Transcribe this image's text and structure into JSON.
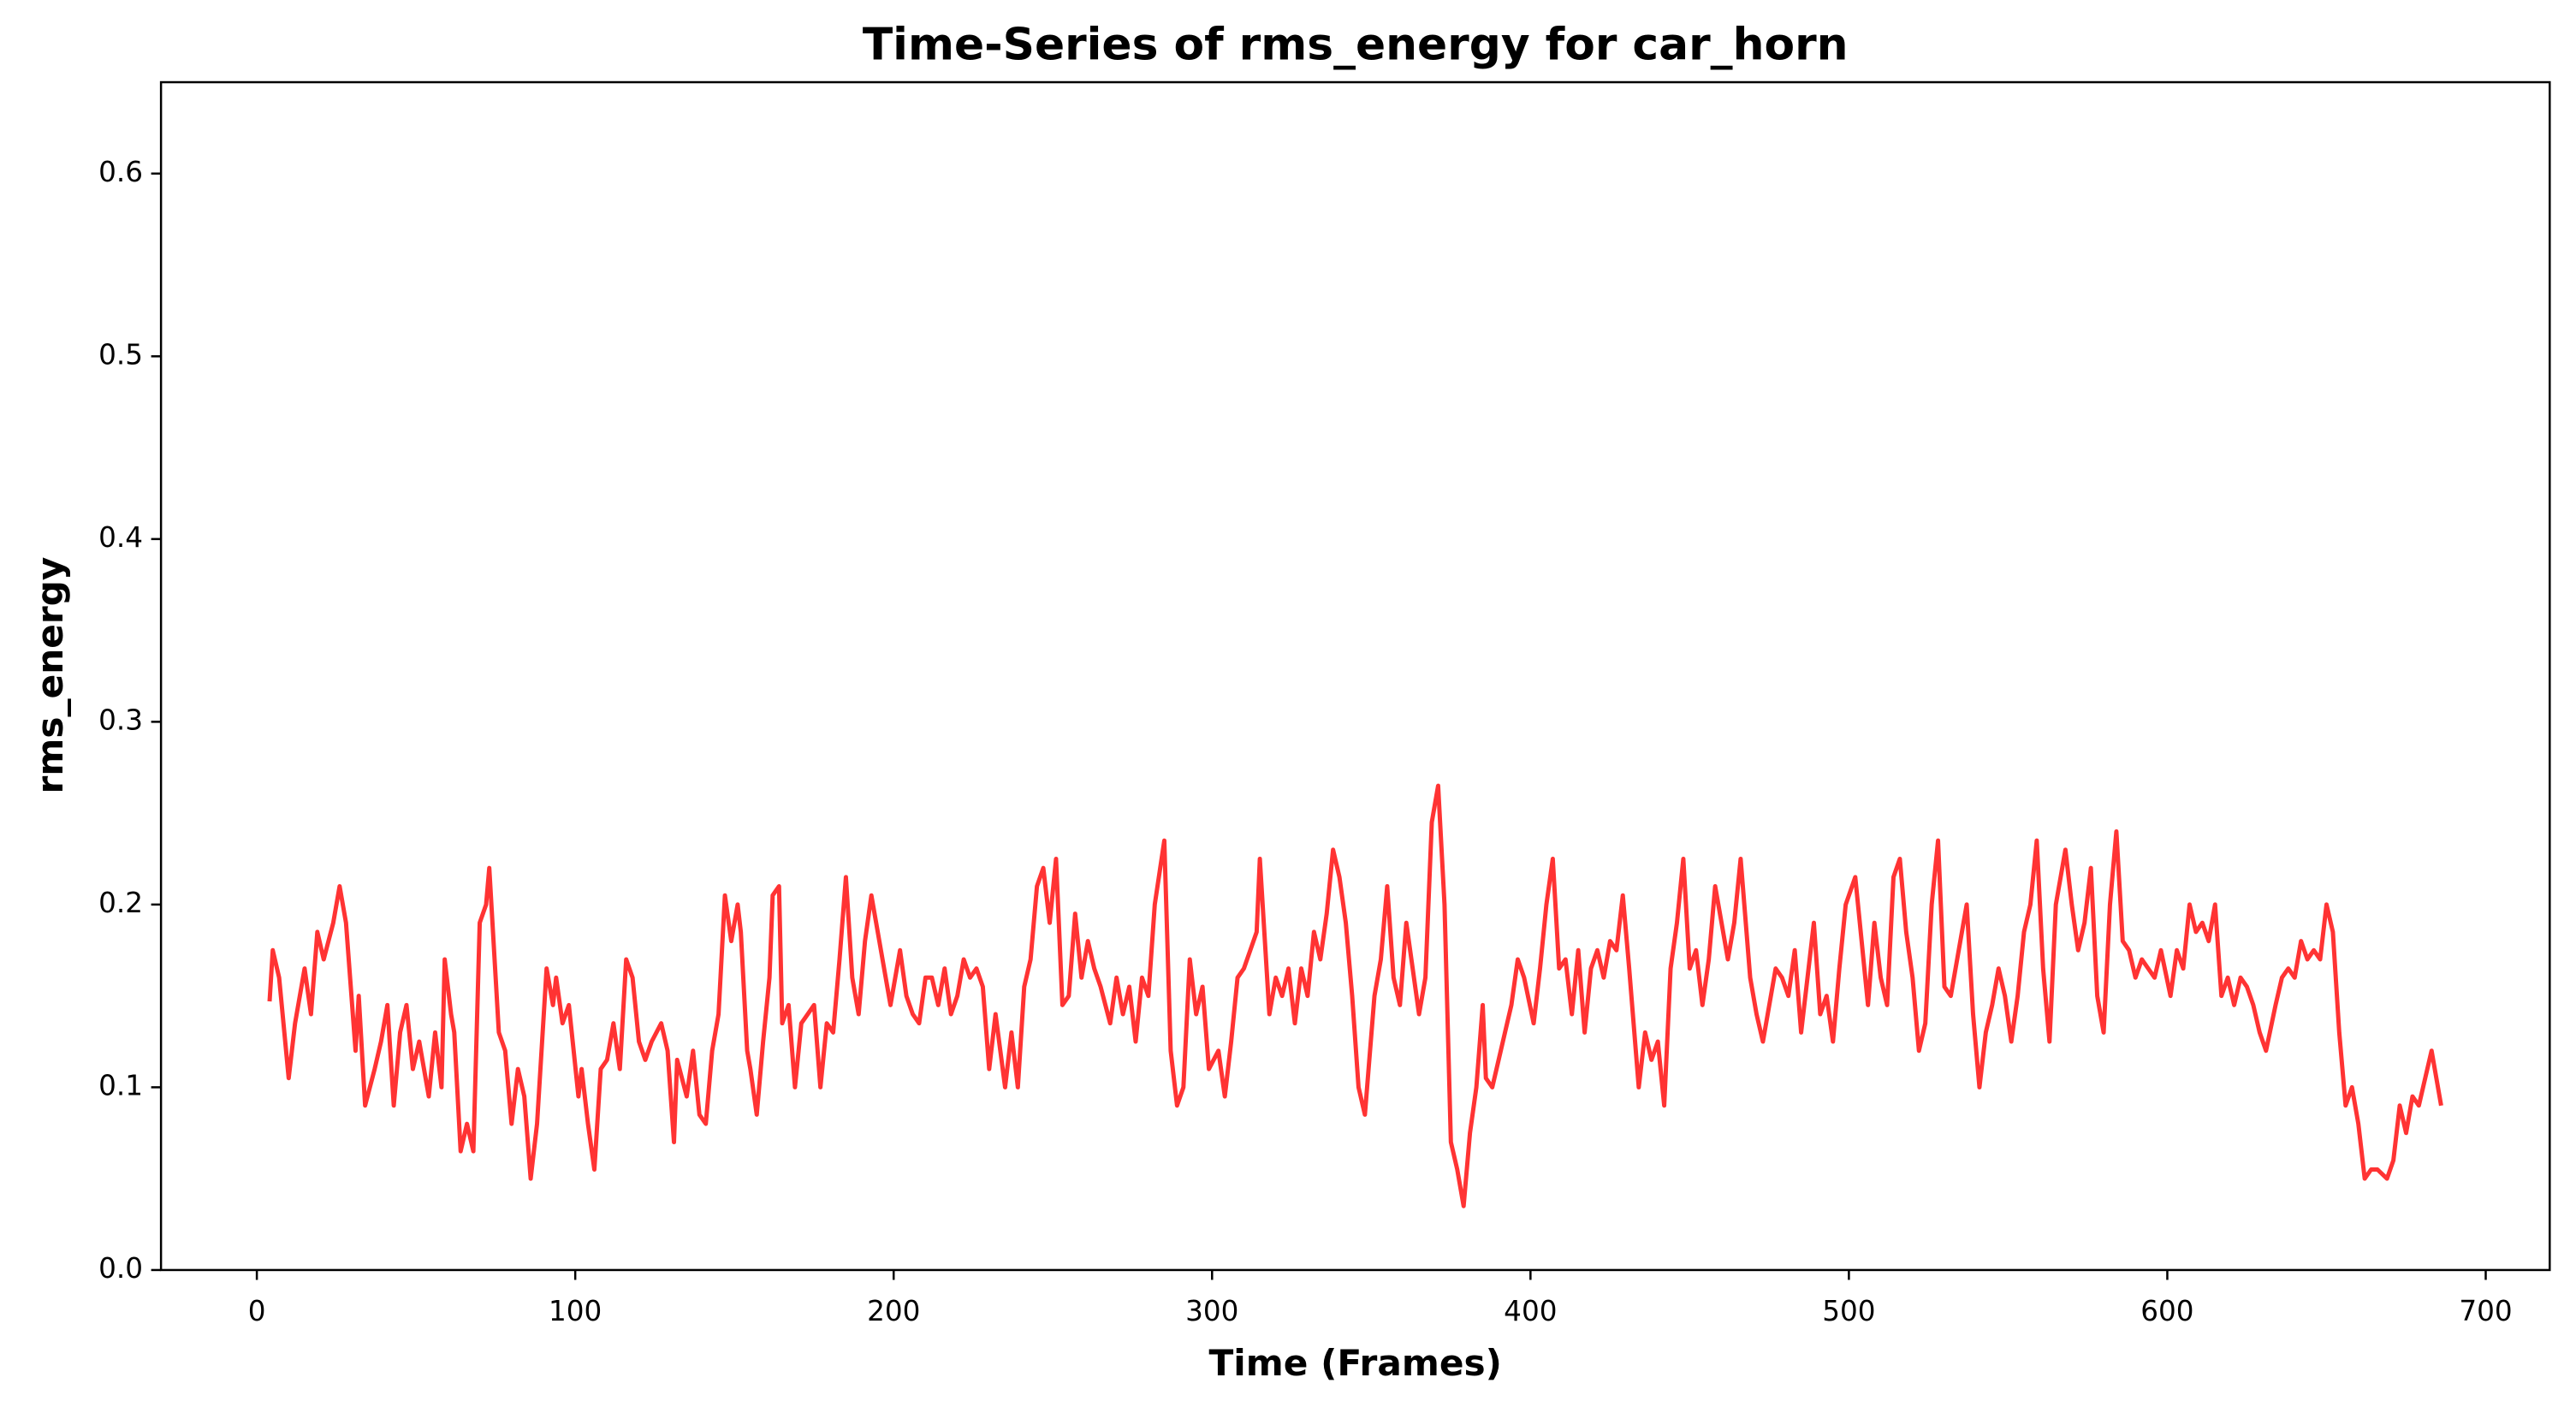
{
  "chart_data": {
    "type": "line",
    "title": "Time-Series of rms_energy for car_horn",
    "x_label": "Time (Frames)",
    "y_label": "rms_energy",
    "xlim": [
      -30.1,
      720.1
    ],
    "ylim": [
      0,
      0.65
    ],
    "xticks": [
      0,
      100,
      200,
      300,
      400,
      500,
      600,
      700
    ],
    "yticks": [
      {
        "value": 0,
        "label": "0.0"
      },
      0.1,
      0.2,
      0.3,
      0.4,
      0.5,
      0.6
    ],
    "grid": false,
    "x": [
      4,
      5,
      7,
      10,
      12,
      15,
      17,
      19,
      21,
      24,
      26,
      28,
      31,
      32,
      34,
      37,
      39,
      41,
      43,
      45,
      47,
      49,
      51,
      54,
      56,
      58,
      59,
      61,
      62,
      64,
      66,
      68,
      70,
      72,
      73,
      75,
      76,
      78,
      80,
      82,
      84,
      86,
      88,
      91,
      93,
      94,
      96,
      98,
      101,
      102,
      104,
      106,
      108,
      110,
      112,
      114,
      116,
      118,
      120,
      122,
      124,
      127,
      129,
      131,
      132,
      135,
      137,
      139,
      141,
      143,
      145,
      147,
      149,
      151,
      152,
      154,
      155,
      157,
      159,
      161,
      162,
      164,
      165,
      167,
      169,
      171,
      173,
      175,
      177,
      179,
      181,
      183,
      185,
      187,
      189,
      191,
      193,
      195,
      197,
      199,
      202,
      204,
      206,
      208,
      210,
      212,
      214,
      216,
      218,
      220,
      222,
      224,
      226,
      228,
      230,
      232,
      235,
      237,
      239,
      241,
      243,
      245,
      247,
      249,
      251,
      253,
      255,
      257,
      259,
      261,
      263,
      265,
      268,
      270,
      272,
      274,
      276,
      278,
      280,
      282,
      285,
      287,
      289,
      291,
      293,
      295,
      297,
      299,
      302,
      304,
      306,
      308,
      310,
      312,
      314,
      315,
      318,
      320,
      322,
      324,
      326,
      328,
      330,
      332,
      334,
      336,
      338,
      340,
      342,
      344,
      346,
      348,
      351,
      353,
      355,
      357,
      359,
      361,
      363,
      365,
      367,
      369,
      371,
      373,
      375,
      377,
      379,
      381,
      383,
      385,
      386,
      388,
      390,
      392,
      394,
      396,
      398,
      401,
      403,
      405,
      407,
      409,
      411,
      413,
      415,
      417,
      419,
      421,
      423,
      425,
      427,
      429,
      431,
      434,
      436,
      438,
      440,
      442,
      444,
      446,
      448,
      450,
      452,
      454,
      456,
      458,
      460,
      462,
      464,
      466,
      469,
      471,
      473,
      475,
      477,
      479,
      481,
      483,
      485,
      487,
      489,
      491,
      493,
      495,
      497,
      499,
      502,
      504,
      506,
      508,
      510,
      512,
      514,
      516,
      518,
      520,
      522,
      524,
      526,
      528,
      530,
      532,
      535,
      537,
      539,
      541,
      543,
      545,
      547,
      549,
      551,
      553,
      555,
      557,
      559,
      561,
      563,
      565,
      568,
      570,
      572,
      574,
      576,
      578,
      580,
      582,
      584,
      586,
      588,
      590,
      592,
      594,
      596,
      598,
      601,
      603,
      605,
      607,
      609,
      611,
      613,
      615,
      617,
      619,
      621,
      623,
      625,
      627,
      629,
      631,
      634,
      636,
      638,
      640,
      642,
      644,
      646,
      648,
      650,
      652,
      654,
      656,
      658,
      660,
      662,
      664,
      666,
      669,
      671,
      673,
      675,
      677,
      679,
      683,
      686
    ],
    "series": [
      {
        "color": "#ff3333",
        "values": [
          0.147,
          0.175,
          0.16,
          0.105,
          0.135,
          0.165,
          0.14,
          0.185,
          0.17,
          0.19,
          0.21,
          0.19,
          0.12,
          0.15,
          0.09,
          0.11,
          0.125,
          0.145,
          0.09,
          0.13,
          0.145,
          0.11,
          0.125,
          0.095,
          0.13,
          0.1,
          0.17,
          0.14,
          0.13,
          0.065,
          0.08,
          0.065,
          0.19,
          0.2,
          0.22,
          0.16,
          0.13,
          0.12,
          0.08,
          0.11,
          0.095,
          0.05,
          0.08,
          0.165,
          0.145,
          0.16,
          0.135,
          0.145,
          0.095,
          0.11,
          0.08,
          0.055,
          0.11,
          0.115,
          0.135,
          0.11,
          0.17,
          0.16,
          0.125,
          0.115,
          0.125,
          0.135,
          0.12,
          0.07,
          0.115,
          0.095,
          0.12,
          0.085,
          0.08,
          0.12,
          0.14,
          0.205,
          0.18,
          0.2,
          0.185,
          0.12,
          0.11,
          0.085,
          0.125,
          0.16,
          0.205,
          0.21,
          0.135,
          0.145,
          0.1,
          0.135,
          0.14,
          0.145,
          0.1,
          0.135,
          0.13,
          0.17,
          0.215,
          0.16,
          0.14,
          0.18,
          0.205,
          0.185,
          0.165,
          0.145,
          0.175,
          0.15,
          0.14,
          0.135,
          0.16,
          0.16,
          0.145,
          0.165,
          0.14,
          0.15,
          0.17,
          0.16,
          0.165,
          0.155,
          0.11,
          0.14,
          0.1,
          0.13,
          0.1,
          0.155,
          0.17,
          0.21,
          0.22,
          0.19,
          0.225,
          0.145,
          0.15,
          0.195,
          0.16,
          0.18,
          0.165,
          0.155,
          0.135,
          0.16,
          0.14,
          0.155,
          0.125,
          0.16,
          0.15,
          0.2,
          0.235,
          0.12,
          0.09,
          0.1,
          0.17,
          0.14,
          0.155,
          0.11,
          0.12,
          0.095,
          0.125,
          0.16,
          0.165,
          0.175,
          0.185,
          0.225,
          0.14,
          0.16,
          0.15,
          0.165,
          0.135,
          0.165,
          0.15,
          0.185,
          0.17,
          0.195,
          0.23,
          0.215,
          0.19,
          0.15,
          0.1,
          0.085,
          0.15,
          0.17,
          0.21,
          0.16,
          0.145,
          0.19,
          0.165,
          0.14,
          0.16,
          0.245,
          0.265,
          0.2,
          0.07,
          0.055,
          0.035,
          0.075,
          0.1,
          0.145,
          0.105,
          0.1,
          0.115,
          0.13,
          0.145,
          0.17,
          0.16,
          0.135,
          0.165,
          0.2,
          0.225,
          0.165,
          0.17,
          0.14,
          0.175,
          0.13,
          0.165,
          0.175,
          0.16,
          0.18,
          0.175,
          0.205,
          0.165,
          0.1,
          0.13,
          0.115,
          0.125,
          0.09,
          0.165,
          0.19,
          0.225,
          0.165,
          0.175,
          0.145,
          0.17,
          0.21,
          0.19,
          0.17,
          0.19,
          0.225,
          0.16,
          0.14,
          0.125,
          0.145,
          0.165,
          0.16,
          0.15,
          0.175,
          0.13,
          0.16,
          0.19,
          0.14,
          0.15,
          0.125,
          0.165,
          0.2,
          0.215,
          0.18,
          0.145,
          0.19,
          0.16,
          0.145,
          0.215,
          0.225,
          0.185,
          0.16,
          0.12,
          0.135,
          0.2,
          0.235,
          0.155,
          0.15,
          0.18,
          0.2,
          0.14,
          0.1,
          0.13,
          0.145,
          0.165,
          0.15,
          0.125,
          0.15,
          0.185,
          0.2,
          0.235,
          0.165,
          0.125,
          0.2,
          0.23,
          0.2,
          0.175,
          0.19,
          0.22,
          0.15,
          0.13,
          0.2,
          0.24,
          0.18,
          0.175,
          0.16,
          0.17,
          0.165,
          0.16,
          0.175,
          0.15,
          0.175,
          0.165,
          0.2,
          0.185,
          0.19,
          0.18,
          0.2,
          0.15,
          0.16,
          0.145,
          0.16,
          0.155,
          0.145,
          0.13,
          0.12,
          0.145,
          0.16,
          0.165,
          0.16,
          0.18,
          0.17,
          0.175,
          0.17,
          0.2,
          0.185,
          0.13,
          0.09,
          0.1,
          0.08,
          0.05,
          0.055,
          0.055,
          0.05,
          0.06,
          0.09,
          0.075,
          0.095,
          0.09,
          0.12,
          0.09
        ]
      }
    ]
  }
}
